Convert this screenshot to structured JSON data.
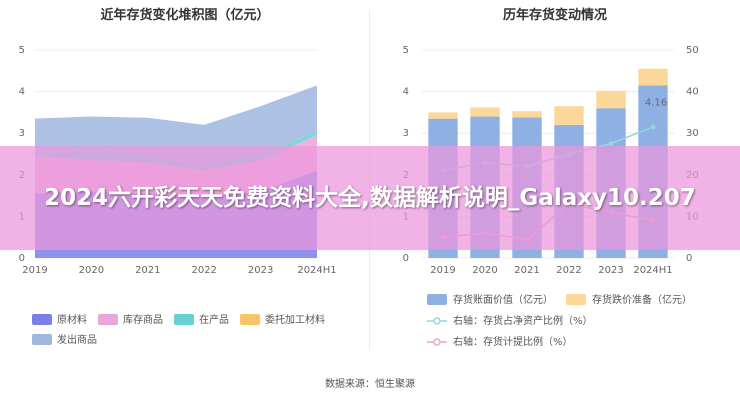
{
  "source_text": "数据来源：恒生聚源",
  "overlay": {
    "headline": "2024六开彩天天免费资料大全,数据解析说明_Galaxy10.207"
  },
  "chart_data": [
    {
      "type": "area",
      "stacked": true,
      "title": "近年存货变化堆积图（亿元）",
      "categories": [
        "2019",
        "2020",
        "2021",
        "2022",
        "2023",
        "2024H1"
      ],
      "ylim": [
        0,
        5
      ],
      "yticks": [
        0,
        1,
        2,
        3,
        4,
        5
      ],
      "grid": true,
      "legend_position": "bottom",
      "series": [
        {
          "name": "原材料",
          "color": "#7b7fe8",
          "values": [
            1.55,
            1.6,
            1.55,
            1.45,
            1.6,
            2.1
          ]
        },
        {
          "name": "库存商品",
          "color": "#e9a6d9",
          "values": [
            0.9,
            0.75,
            0.75,
            0.65,
            0.75,
            0.85
          ]
        },
        {
          "name": "在产品",
          "color": "#66d0d4",
          "values": [
            0.02,
            0.3,
            0.15,
            0.12,
            0.12,
            0.1
          ]
        },
        {
          "name": "委托加工材料",
          "color": "#f7c46a",
          "values": [
            0,
            0,
            0,
            0,
            0,
            0
          ]
        },
        {
          "name": "发出商品",
          "color": "#9fb6e0",
          "values": [
            0.88,
            0.75,
            0.92,
            0.98,
            1.18,
            1.1
          ]
        }
      ]
    },
    {
      "type": "bar",
      "stacked": true,
      "title": "历年存货变动情况",
      "categories": [
        "2019",
        "2020",
        "2021",
        "2022",
        "2023",
        "2024H1"
      ],
      "ylim": [
        0,
        5
      ],
      "yticks": [
        0,
        1,
        2,
        3,
        4,
        5
      ],
      "y2lim": [
        0,
        50
      ],
      "y2ticks": [
        0,
        10,
        20,
        30,
        40,
        50
      ],
      "grid": true,
      "legend_position": "bottom",
      "series": [
        {
          "name": "存货账面价值（亿元）",
          "kind": "bar",
          "axis": "left",
          "color": "#8fb0e3",
          "values": [
            3.35,
            3.4,
            3.38,
            3.2,
            3.6,
            4.15
          ]
        },
        {
          "name": "存货跌价准备（亿元）",
          "kind": "bar",
          "axis": "left",
          "color": "#fbd89a",
          "values": [
            0.15,
            0.22,
            0.15,
            0.45,
            0.42,
            0.4
          ]
        },
        {
          "name": "右轴：存货占净资产比例（%）",
          "kind": "line",
          "axis": "right",
          "color": "#8fd9dc",
          "values": [
            21,
            23,
            22,
            25,
            27.5,
            31.5
          ]
        },
        {
          "name": "右轴：存货计提比例（%）",
          "kind": "line",
          "axis": "right",
          "color": "#f0a4c7",
          "values": [
            5,
            6,
            4.5,
            13,
            11,
            9
          ]
        }
      ],
      "annotations": [
        "4.16"
      ]
    }
  ]
}
